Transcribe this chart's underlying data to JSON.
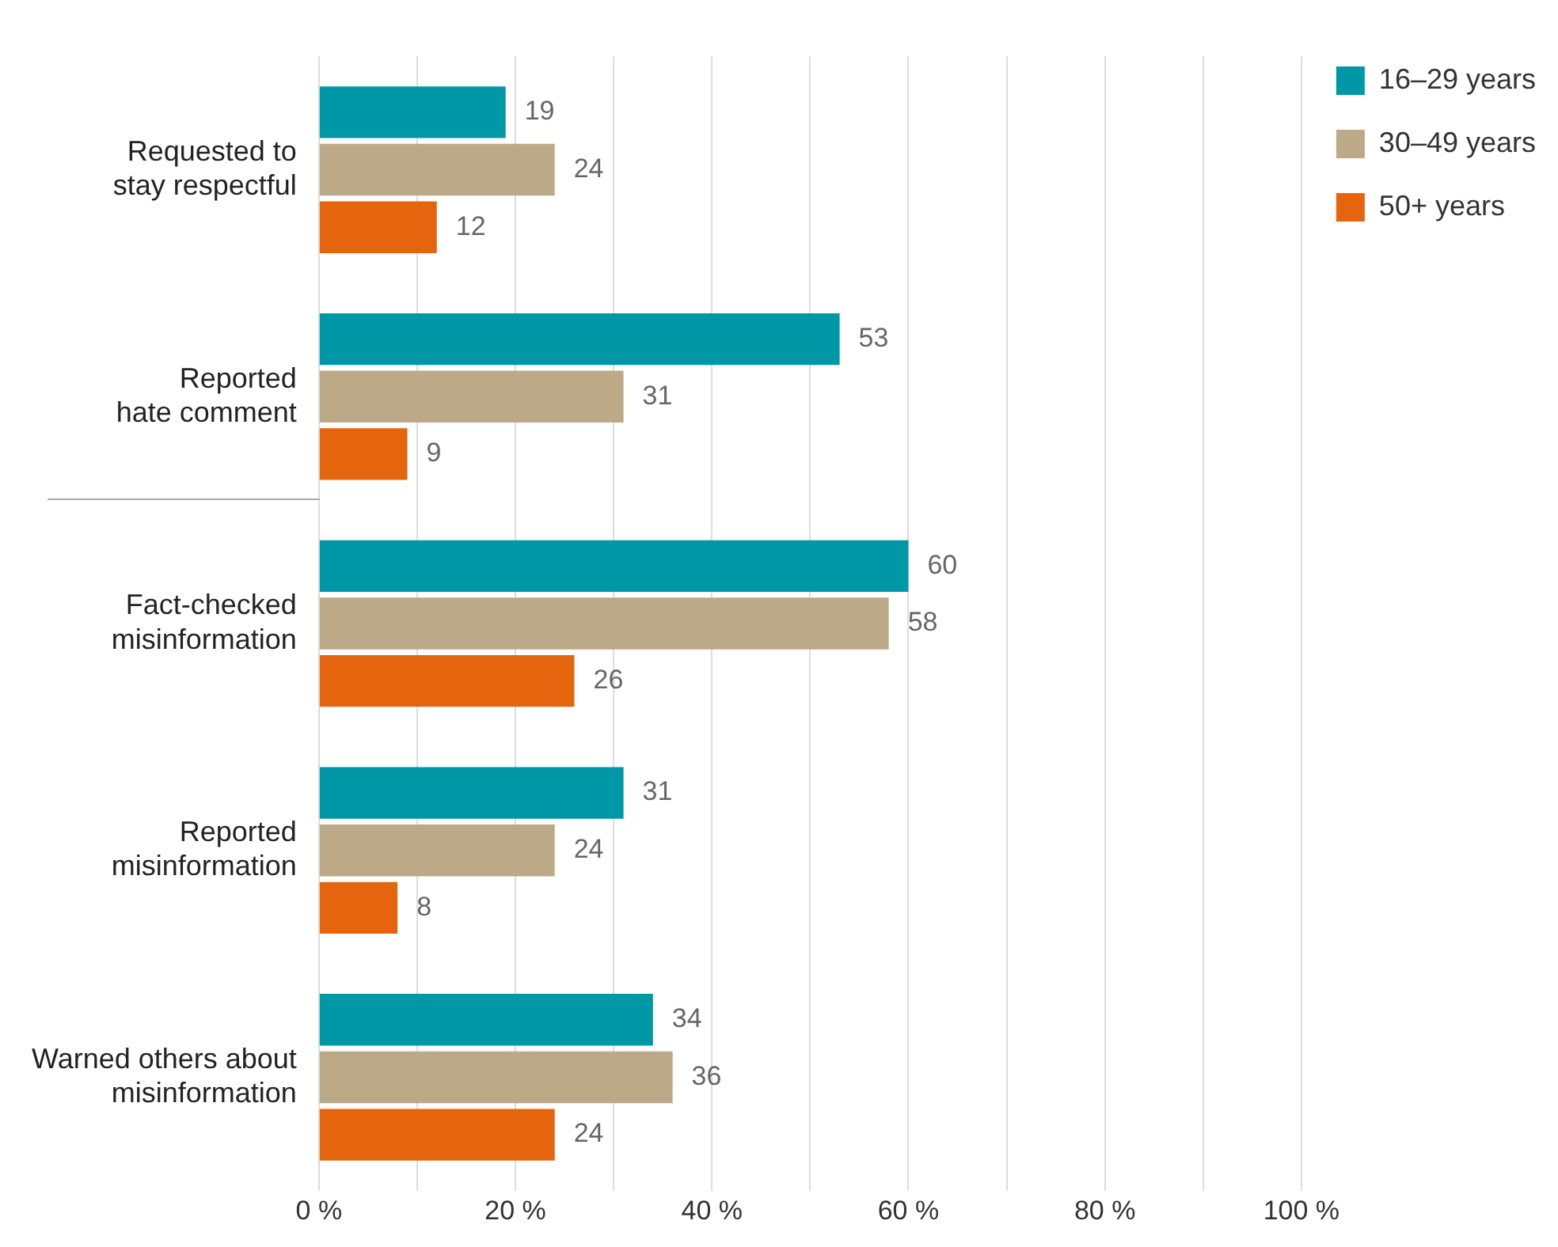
{
  "chart_data": {
    "type": "bar",
    "orientation": "horizontal",
    "categories": [
      "Requested to stay respectful",
      "Reported hate comment",
      "Fact-checked misinformation",
      "Reported misinformation",
      "Warned others about misinformation"
    ],
    "series": [
      {
        "name": "16–29 years",
        "color": "#0097a7",
        "values": [
          19,
          53,
          60,
          31,
          34
        ]
      },
      {
        "name": "30–49 years",
        "color": "#bba987",
        "values": [
          24,
          31,
          58,
          24,
          36
        ]
      },
      {
        "name": "50+ years",
        "color": "#e5650f",
        "values": [
          12,
          9,
          26,
          8,
          24
        ]
      }
    ],
    "xlim": [
      0,
      100
    ],
    "xticks": [
      {
        "value": 0,
        "label": "0 %"
      },
      {
        "value": 10,
        "label": null
      },
      {
        "value": 20,
        "label": "20 %"
      },
      {
        "value": 30,
        "label": null
      },
      {
        "value": 40,
        "label": "40 %"
      },
      {
        "value": 50,
        "label": null
      },
      {
        "value": 60,
        "label": "60 %"
      },
      {
        "value": 70,
        "label": null
      },
      {
        "value": 80,
        "label": "80 %"
      },
      {
        "value": 90,
        "label": null
      },
      {
        "value": 100,
        "label": "100 %"
      }
    ],
    "grid": "x",
    "legend": "top right",
    "data_labels": true
  }
}
